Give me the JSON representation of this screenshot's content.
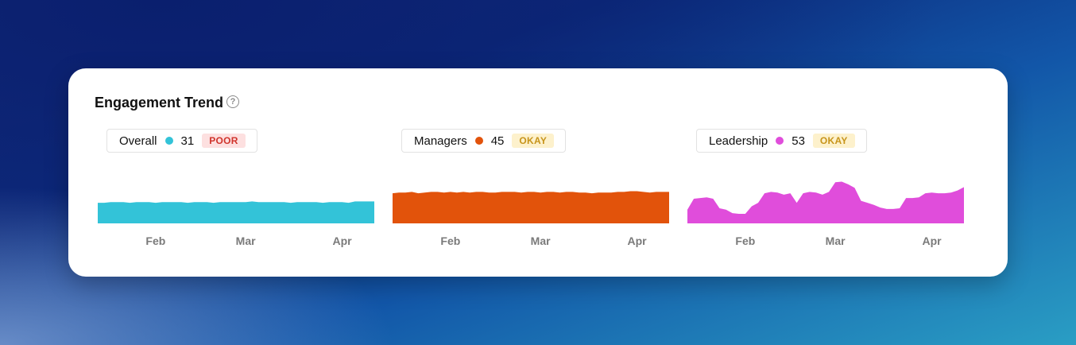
{
  "header": {
    "title": "Engagement Trend"
  },
  "chart_data": [
    {
      "type": "area",
      "categories": [
        null,
        null,
        null,
        null,
        null,
        null,
        null,
        null,
        null,
        "Feb",
        null,
        null,
        null,
        null,
        null,
        null,
        null,
        null,
        null,
        null,
        null,
        null,
        null,
        "Mar",
        null,
        null,
        null,
        null,
        null,
        null,
        null,
        null,
        null,
        null,
        null,
        null,
        null,
        null,
        "Apr",
        null,
        null,
        null,
        null,
        null
      ],
      "series": [
        {
          "name": "Overall",
          "color": "#33c3d8",
          "values": [
            30,
            30,
            31,
            31,
            31,
            30,
            31,
            31,
            31,
            30,
            31,
            31,
            31,
            31,
            30,
            31,
            31,
            31,
            30,
            31,
            31,
            31,
            31,
            31,
            32,
            31,
            31,
            31,
            31,
            31,
            30,
            31,
            31,
            31,
            31,
            30,
            31,
            31,
            31,
            30,
            32,
            32,
            32,
            32
          ]
        }
      ],
      "score": 31,
      "rating": "POOR",
      "ylim": [
        0,
        65
      ]
    },
    {
      "type": "area",
      "categories": [
        null,
        null,
        null,
        null,
        null,
        null,
        null,
        null,
        null,
        "Feb",
        null,
        null,
        null,
        null,
        null,
        null,
        null,
        null,
        null,
        null,
        null,
        null,
        null,
        "Mar",
        null,
        null,
        null,
        null,
        null,
        null,
        null,
        null,
        null,
        null,
        null,
        null,
        null,
        null,
        "Apr",
        null,
        null,
        null,
        null,
        null
      ],
      "series": [
        {
          "name": "Managers",
          "color": "#e2530b",
          "values": [
            44,
            45,
            45,
            46,
            44,
            45,
            46,
            46,
            45,
            46,
            45,
            46,
            45,
            46,
            46,
            45,
            45,
            46,
            46,
            46,
            45,
            46,
            46,
            45,
            46,
            46,
            45,
            46,
            46,
            45,
            45,
            44,
            45,
            45,
            45,
            46,
            46,
            47,
            47,
            46,
            45,
            46,
            46,
            46
          ]
        }
      ],
      "score": 45,
      "rating": "OKAY",
      "ylim": [
        0,
        65
      ]
    },
    {
      "type": "area",
      "categories": [
        null,
        null,
        null,
        null,
        null,
        null,
        null,
        null,
        null,
        "Feb",
        null,
        null,
        null,
        null,
        null,
        null,
        null,
        null,
        null,
        null,
        null,
        null,
        null,
        "Mar",
        null,
        null,
        null,
        null,
        null,
        null,
        null,
        null,
        null,
        null,
        null,
        null,
        null,
        null,
        "Apr",
        null,
        null,
        null,
        null,
        null
      ],
      "series": [
        {
          "name": "Leadership",
          "color": "#e04ddb",
          "values": [
            20,
            36,
            37,
            38,
            36,
            22,
            20,
            15,
            14,
            14,
            25,
            30,
            44,
            46,
            45,
            42,
            44,
            30,
            44,
            46,
            45,
            42,
            46,
            60,
            61,
            57,
            52,
            33,
            30,
            27,
            23,
            21,
            21,
            22,
            37,
            37,
            38,
            44,
            45,
            44,
            44,
            45,
            48,
            53
          ]
        }
      ],
      "score": 53,
      "rating": "OKAY",
      "ylim": [
        0,
        65
      ]
    }
  ]
}
